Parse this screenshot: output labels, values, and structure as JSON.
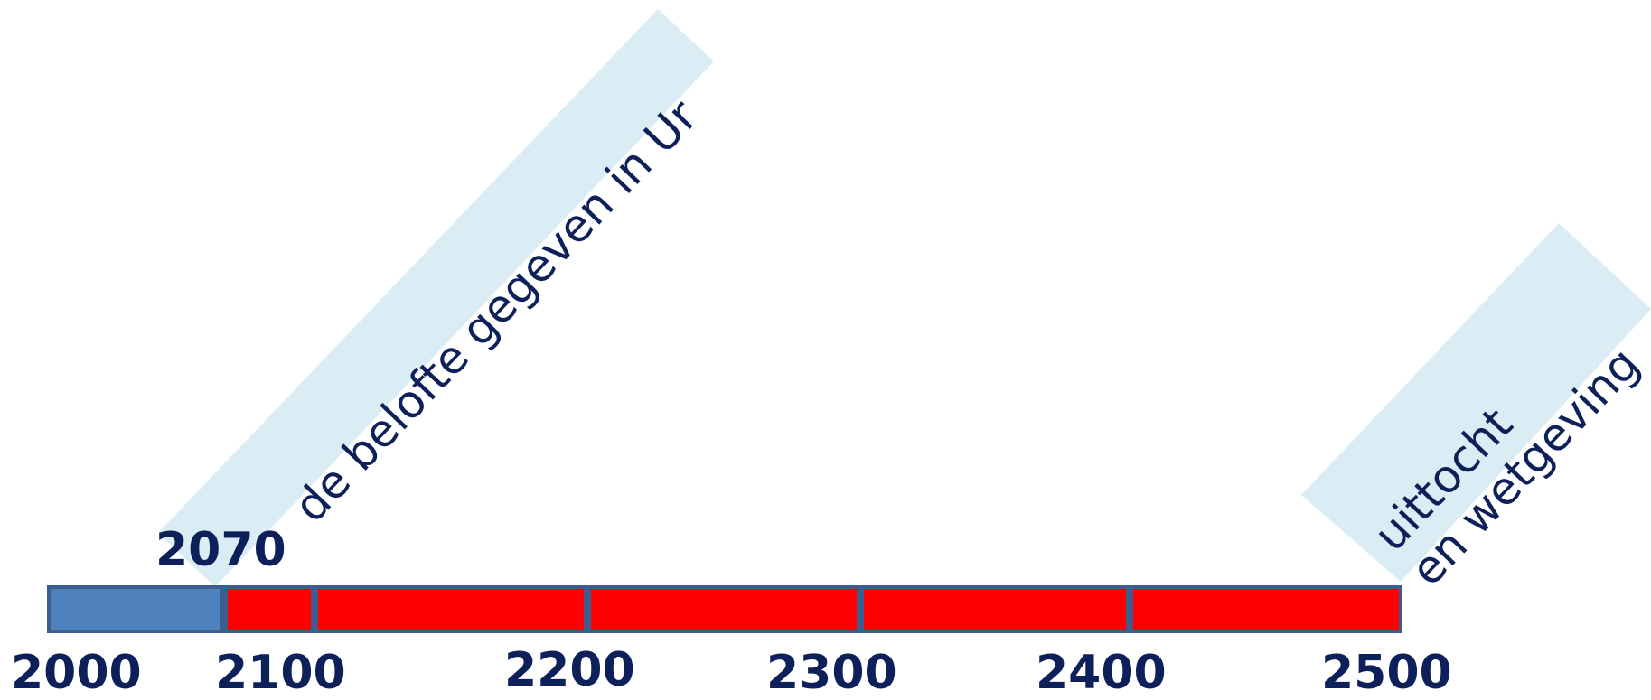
{
  "timeline": {
    "start_year": 2000,
    "end_year": 2500,
    "marker_year": 2070,
    "segments": [
      {
        "from": 2000,
        "to": 2070,
        "color": "#4f81bd"
      },
      {
        "from": 2070,
        "to": 2100,
        "color": "#ff0000"
      },
      {
        "from": 2100,
        "to": 2200,
        "color": "#ff0000"
      },
      {
        "from": 2200,
        "to": 2300,
        "color": "#ff0000"
      },
      {
        "from": 2300,
        "to": 2400,
        "color": "#ff0000"
      },
      {
        "from": 2400,
        "to": 2500,
        "color": "#ff0000"
      }
    ],
    "tick_labels": [
      "2000",
      "2100",
      "2200",
      "2300",
      "2400",
      "2500"
    ],
    "marker_label": "2070"
  },
  "events": [
    {
      "lines": [
        "de belofte gegeven in Ur"
      ]
    },
    {
      "lines": [
        "uittocht",
        "en wetgeving"
      ]
    }
  ],
  "colors": {
    "text": "#0d2059",
    "banner": "#daedf4",
    "border": "#3a5f8f"
  }
}
